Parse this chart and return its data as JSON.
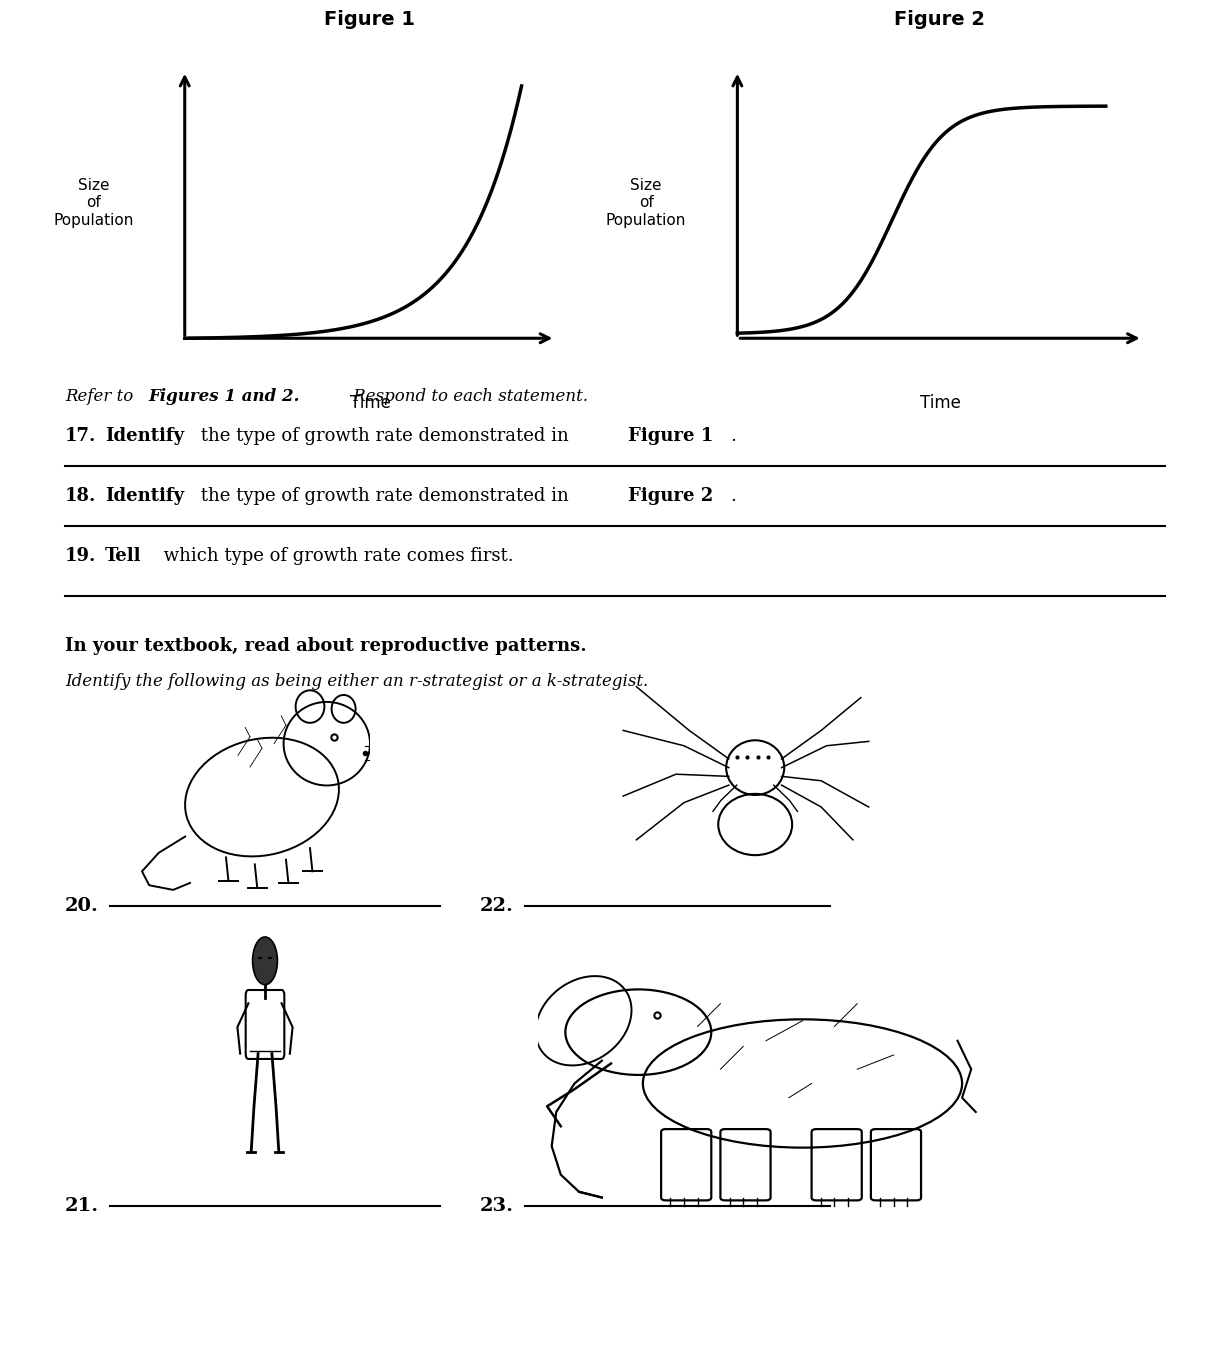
{
  "fig1_title": "Figure 1",
  "fig2_title": "Figure 2",
  "fig1_ylabel": "Size\nof\nPopulation",
  "fig2_ylabel": "Size\nof\nPopulation",
  "fig1_xlabel": "Time",
  "fig2_xlabel": "Time",
  "bg_color": "#ffffff",
  "text_color": "#000000",
  "line_color": "#000000",
  "curve_linewidth": 2.5,
  "axis_linewidth": 2.2,
  "q17_num": "17.",
  "q17_bold": "Identify",
  "q17_rest": " the type of growth rate demonstrated in ",
  "q17_bold2": "Figure 1",
  "q17_end": ".",
  "q18_num": "18.",
  "q18_bold": "Identify",
  "q18_rest": " the type of growth rate demonstrated in ",
  "q18_bold2": "Figure 2",
  "q18_end": ".",
  "q19_num": "19.",
  "q19_bold": "Tell",
  "q19_rest": " which type of growth rate comes first.",
  "intro_italic1": "Refer to ",
  "intro_bold": "Figures 1 and 2.",
  "intro_italic2": " Respond to each statement.",
  "tb_bold": "In your textbook, read about reproductive patterns.",
  "tb_italic": "Identify the following as being either an r-strategist or a k-strategist.",
  "label20": "20.",
  "label21": "21.",
  "label22": "22.",
  "label23": "23.",
  "fontsize_main": 13,
  "fontsize_intro": 12,
  "fontsize_label": 14
}
